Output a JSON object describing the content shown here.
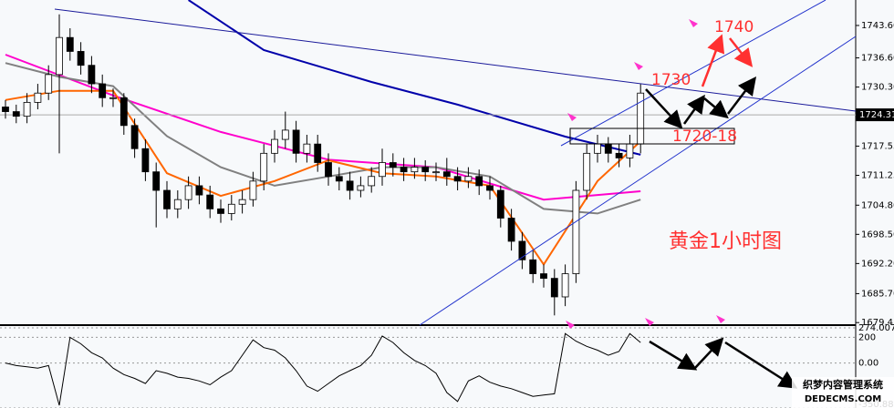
{
  "chart_data": [
    {
      "type": "candlestick",
      "open": [
        1726,
        1725,
        1724,
        1727,
        1729,
        1733,
        1741,
        1738,
        1735,
        1731,
        1728,
        1728,
        1722,
        1717,
        1712,
        1708,
        1704,
        1706,
        1709,
        1707,
        1704,
        1703,
        1705,
        1706,
        1710,
        1716,
        1719,
        1721,
        1716,
        1718,
        1714,
        1711,
        1710,
        1708,
        1709,
        1711,
        1714,
        1713,
        1712,
        1713,
        1712,
        1712,
        1711,
        1710,
        1711,
        1709,
        1708,
        1702,
        1697,
        1693,
        1690,
        1689,
        1685,
        1690,
        1708,
        1716,
        1718,
        1716,
        1715,
        1718
      ],
      "high": [
        1727.5,
        1726.5,
        1729,
        1731,
        1735,
        1746,
        1743,
        1740,
        1737,
        1733,
        1730,
        1729,
        1723.5,
        1719,
        1714,
        1710,
        1708,
        1711,
        1711,
        1709,
        1706,
        1707,
        1708,
        1712,
        1718,
        1721,
        1725,
        1723,
        1720,
        1720,
        1716,
        1713,
        1712,
        1711,
        1713,
        1717,
        1716,
        1715,
        1715,
        1714.5,
        1714,
        1715,
        1713,
        1713,
        1712.5,
        1711,
        1709,
        1704,
        1699,
        1695,
        1692,
        1691,
        1692,
        1710,
        1718,
        1720,
        1719.5,
        1718,
        1720,
        1731
      ],
      "low": [
        1723.5,
        1722.5,
        1722.5,
        1725.5,
        1727.5,
        1716,
        1736,
        1733,
        1729,
        1726,
        1726,
        1720,
        1715,
        1710,
        1700,
        1702,
        1702,
        1704,
        1705,
        1702,
        1701,
        1701.5,
        1703,
        1704.5,
        1708,
        1714,
        1717,
        1714,
        1714,
        1712,
        1709,
        1708,
        1706,
        1706.5,
        1707.5,
        1709,
        1711,
        1710,
        1710.5,
        1710,
        1710,
        1709,
        1708,
        1708.5,
        1707,
        1706,
        1700,
        1695,
        1691,
        1688,
        1687,
        1681,
        1683,
        1688,
        1706,
        1714,
        1714,
        1713,
        1713,
        1716
      ],
      "close": [
        1725,
        1724,
        1727,
        1729,
        1733,
        1741,
        1738,
        1735,
        1731,
        1728,
        1728,
        1722,
        1717,
        1712,
        1708,
        1704,
        1706,
        1709,
        1707,
        1704,
        1703,
        1705,
        1706,
        1710,
        1716,
        1719,
        1721,
        1716,
        1718,
        1714,
        1711,
        1710,
        1708,
        1709,
        1711,
        1714,
        1713,
        1712,
        1713,
        1712,
        1712,
        1711,
        1710,
        1711,
        1709,
        1708,
        1702,
        1697,
        1693,
        1690,
        1689,
        1685,
        1690,
        1708,
        1716,
        1718,
        1716,
        1715,
        1718,
        1729
      ],
      "up_color": "#ffffff",
      "down_color": "#000000",
      "overlays": [
        {
          "color": "#0000aa",
          "x": [
            17,
            24,
            34,
            42,
            52,
            59
          ],
          "values": [
            1749.1,
            1738.3,
            1731.4,
            1726.5,
            1719.6,
            1715.7
          ]
        },
        {
          "color": "#ff00cc",
          "x": [
            0,
            10,
            20,
            30,
            40,
            50,
            59
          ],
          "values": [
            1737.3,
            1728.5,
            1720.6,
            1714.6,
            1713,
            1706,
            1707.8
          ]
        },
        {
          "color": "#808080",
          "x": [
            0,
            5,
            10,
            15,
            20,
            25,
            30,
            35,
            40,
            45,
            50,
            55,
            59
          ],
          "values": [
            1735.5,
            1732.5,
            1730.5,
            1719.7,
            1713,
            1709,
            1711,
            1713,
            1713,
            1711,
            1704,
            1703,
            1706
          ]
        },
        {
          "color": "#ff6600",
          "x": [
            0,
            5,
            10,
            15,
            20,
            25,
            30,
            35,
            40,
            45,
            50,
            55,
            59
          ],
          "values": [
            1727.5,
            1729.5,
            1729.5,
            1711.7,
            1706.8,
            1710,
            1714.5,
            1711.7,
            1711,
            1709,
            1692,
            1710,
            1718.6
          ]
        }
      ],
      "last_price": 1724.31,
      "ylim": [
        1678.9,
        1749.1
      ],
      "yticks": [
        {
          "value": 1743.6,
          "label": "1743.60"
        },
        {
          "value": 1736.6,
          "label": "1736.60"
        },
        {
          "value": 1730.3,
          "label": "1730.30"
        },
        1717.55,
        1711.25,
        {
          "value": 1704.8,
          "label": "1704.80"
        },
        {
          "value": 1698.5,
          "label": "1698.50"
        },
        {
          "value": 1692.2,
          "label": "1692.20"
        },
        {
          "value": 1685.7,
          "label": "1685.70"
        },
        1679.45
      ],
      "annotations": [
        "1740",
        "1730",
        "1720-18",
        "黄金1小时图"
      ]
    },
    {
      "type": "line",
      "color": "#000000",
      "values": [
        0,
        -20,
        -30,
        -40,
        -20,
        -330,
        200,
        150,
        80,
        40,
        -40,
        -90,
        -120,
        -160,
        -60,
        -80,
        -110,
        -120,
        -140,
        -170,
        -110,
        -60,
        60,
        180,
        120,
        100,
        40,
        -60,
        -180,
        -220,
        -160,
        -100,
        -60,
        -20,
        60,
        210,
        160,
        80,
        20,
        -20,
        -80,
        -230,
        -300,
        -140,
        -100,
        -150,
        -180,
        -200,
        -230,
        -260,
        -250,
        -240,
        230,
        170,
        130,
        100,
        60,
        90,
        230,
        160
      ],
      "ylim": [
        -350.881,
        274.0076
      ],
      "yticks": [
        274.0076,
        200,
        {
          "value": 0,
          "label": "0.00"
        },
        -350.881
      ]
    }
  ],
  "watermark": {
    "line1": "织梦内容管理系统",
    "line2": "DEDECMS.COM"
  }
}
